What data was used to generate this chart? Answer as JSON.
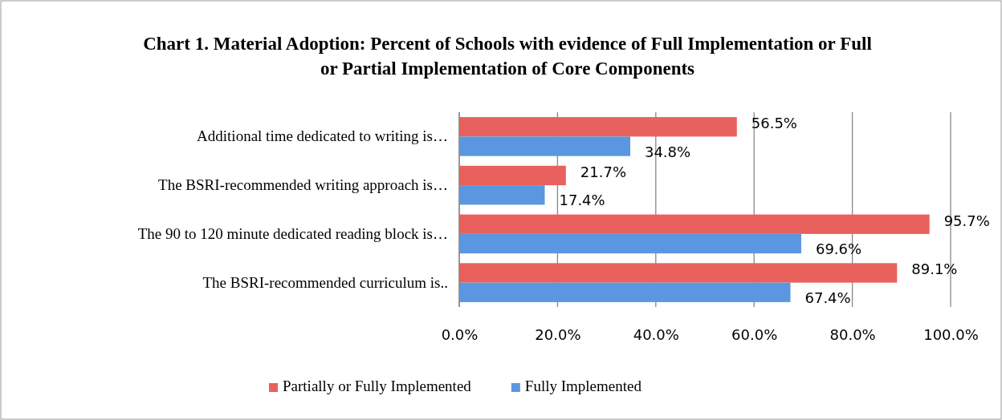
{
  "chart_data": {
    "type": "bar",
    "orientation": "horizontal",
    "title": "Chart 1. Material Adoption: Percent of Schools with evidence of  Full Implementation or Full or Partial Implementation of  Core Components",
    "categories": [
      "Additional time dedicated to writing is…",
      "The BSRI-recommended writing approach is…",
      "The 90 to 120 minute dedicated reading block is…",
      "The BSRI-recommended curriculum is.."
    ],
    "series": [
      {
        "name": "Partially or Fully Implemented",
        "color": "#e8615d",
        "values": [
          56.5,
          21.7,
          95.7,
          89.1
        ],
        "value_labels": [
          "56.5%",
          "21.7%",
          "95.7%",
          "89.1%"
        ]
      },
      {
        "name": "Fully Implemented",
        "color": "#5b97e0",
        "values": [
          34.8,
          17.4,
          69.6,
          67.4
        ],
        "value_labels": [
          "34.8%",
          "17.4%",
          "69.6%",
          "67.4%"
        ]
      }
    ],
    "xlim": [
      0,
      100
    ],
    "xticks": [
      {
        "value": 0,
        "label": "0.0%"
      },
      {
        "value": 20,
        "label": "20.0%"
      },
      {
        "value": 40,
        "label": "40.0%"
      },
      {
        "value": 60,
        "label": "60.0%"
      },
      {
        "value": 80,
        "label": "80.0%"
      },
      {
        "value": 100,
        "label": "100.0%"
      }
    ],
    "grid": "x",
    "legend": "bottom"
  }
}
